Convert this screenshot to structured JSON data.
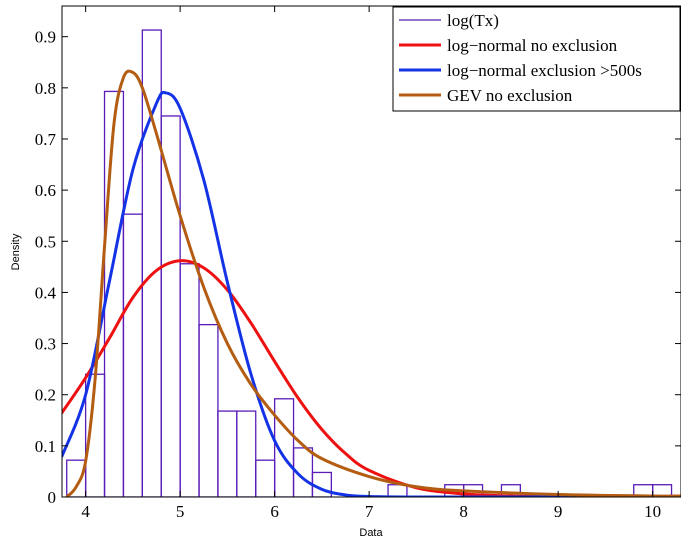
{
  "chart_data": {
    "type": "bar",
    "xlabel": "Data",
    "ylabel": "Density",
    "xlim": [
      3.75,
      10.3
    ],
    "ylim": [
      0,
      0.96
    ],
    "x_ticks": [
      4,
      5,
      6,
      7,
      8,
      9,
      10
    ],
    "y_ticks": [
      0,
      0.1,
      0.2,
      0.3,
      0.4,
      0.5,
      0.6,
      0.7,
      0.8,
      0.9
    ],
    "grid": false,
    "legend_position": "top-right",
    "histogram": {
      "name": "log(Tx)",
      "color": "#5a1bb8",
      "bin_width": 0.2,
      "bins": [
        {
          "x0": 3.8,
          "density": 0.072
        },
        {
          "x0": 4.0,
          "density": 0.24
        },
        {
          "x0": 4.2,
          "density": 0.793
        },
        {
          "x0": 4.4,
          "density": 0.553
        },
        {
          "x0": 4.6,
          "density": 0.913
        },
        {
          "x0": 4.8,
          "density": 0.745
        },
        {
          "x0": 5.0,
          "density": 0.456
        },
        {
          "x0": 5.2,
          "density": 0.337
        },
        {
          "x0": 5.4,
          "density": 0.168
        },
        {
          "x0": 5.6,
          "density": 0.168
        },
        {
          "x0": 5.8,
          "density": 0.072
        },
        {
          "x0": 6.0,
          "density": 0.192
        },
        {
          "x0": 6.2,
          "density": 0.096
        },
        {
          "x0": 6.4,
          "density": 0.048
        },
        {
          "x0": 7.2,
          "density": 0.024
        },
        {
          "x0": 7.8,
          "density": 0.024
        },
        {
          "x0": 8.0,
          "density": 0.024
        },
        {
          "x0": 8.4,
          "density": 0.024
        },
        {
          "x0": 9.8,
          "density": 0.024
        },
        {
          "x0": 10.0,
          "density": 0.024
        }
      ]
    },
    "series": [
      {
        "name": "log−normal no exclusion",
        "color": "#ee1111",
        "x": [
          3.75,
          4.0,
          4.25,
          4.5,
          4.75,
          5.0,
          5.25,
          5.5,
          5.75,
          6.0,
          6.25,
          6.5,
          6.75,
          7.0,
          7.5,
          8.0,
          8.5,
          9.0,
          10.0,
          10.3
        ],
        "values": [
          0.165,
          0.233,
          0.31,
          0.39,
          0.443,
          0.462,
          0.448,
          0.405,
          0.34,
          0.265,
          0.193,
          0.132,
          0.085,
          0.052,
          0.018,
          0.006,
          0.002,
          0.001,
          0.0,
          0.0
        ]
      },
      {
        "name": "log−normal exclusion >500s",
        "color": "#1533e6",
        "x": [
          3.75,
          4.0,
          4.25,
          4.5,
          4.75,
          4.85,
          5.0,
          5.25,
          5.5,
          5.75,
          6.0,
          6.25,
          6.5,
          6.75,
          7.0,
          7.5,
          8.0,
          9.0,
          10.3
        ],
        "values": [
          0.08,
          0.2,
          0.42,
          0.64,
          0.77,
          0.79,
          0.76,
          0.62,
          0.42,
          0.24,
          0.11,
          0.045,
          0.015,
          0.004,
          0.001,
          0.0,
          0.0,
          0.0,
          0.0
        ]
      },
      {
        "name": "GEV no exclusion",
        "color": "#b35c12",
        "x": [
          3.8,
          3.9,
          4.0,
          4.1,
          4.2,
          4.3,
          4.4,
          4.5,
          4.6,
          4.75,
          5.0,
          5.25,
          5.5,
          5.75,
          6.0,
          6.25,
          6.5,
          7.0,
          7.5,
          8.0,
          9.0,
          10.0,
          10.3
        ],
        "values": [
          0.0,
          0.02,
          0.07,
          0.23,
          0.49,
          0.73,
          0.82,
          0.83,
          0.8,
          0.71,
          0.55,
          0.41,
          0.3,
          0.22,
          0.16,
          0.11,
          0.075,
          0.04,
          0.02,
          0.012,
          0.005,
          0.002,
          0.002
        ]
      }
    ]
  }
}
